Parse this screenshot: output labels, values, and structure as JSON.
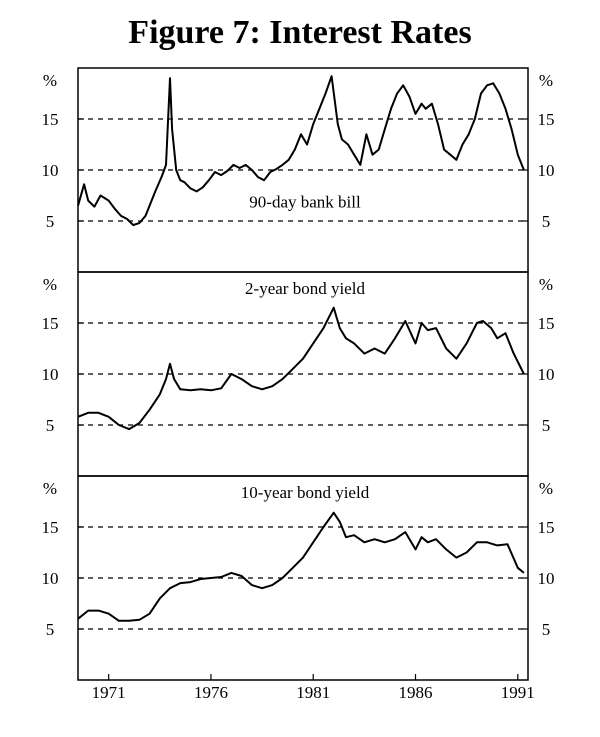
{
  "figure": {
    "title": "Figure 7: Interest Rates"
  },
  "chart_data": {
    "type": "line",
    "title": "Figure 7: Interest Rates",
    "xlabel": "",
    "x_ticks": [
      "1971",
      "1976",
      "1981",
      "1986",
      "1991"
    ],
    "x_tick_values": [
      1971,
      1976,
      1981,
      1986,
      1991
    ],
    "xlim": [
      1969.5,
      1991.5
    ],
    "panels": [
      {
        "label": "90-day bank bill",
        "label_position": "bottom-center",
        "unit_label": "%",
        "ylim": [
          0,
          20
        ],
        "y_ticks": [
          5,
          10,
          15
        ],
        "y_tick_labels": [
          "5",
          "10",
          "15"
        ],
        "grid": "dashed",
        "x": [
          1969.5,
          1969.8,
          1970.0,
          1970.3,
          1970.6,
          1971.0,
          1971.3,
          1971.6,
          1971.9,
          1972.2,
          1972.5,
          1972.8,
          1973.1,
          1973.3,
          1973.6,
          1973.8,
          1974.0,
          1974.1,
          1974.3,
          1974.5,
          1974.7,
          1975.0,
          1975.3,
          1975.6,
          1975.9,
          1976.2,
          1976.5,
          1976.8,
          1977.1,
          1977.4,
          1977.7,
          1978.0,
          1978.3,
          1978.6,
          1978.9,
          1979.2,
          1979.5,
          1979.8,
          1980.1,
          1980.4,
          1980.7,
          1981.0,
          1981.3,
          1981.6,
          1981.9,
          1982.2,
          1982.4,
          1982.7,
          1983.0,
          1983.3,
          1983.6,
          1983.9,
          1984.2,
          1984.5,
          1984.8,
          1985.1,
          1985.4,
          1985.7,
          1986.0,
          1986.3,
          1986.5,
          1986.8,
          1987.1,
          1987.4,
          1987.7,
          1988.0,
          1988.3,
          1988.6,
          1988.9,
          1989.2,
          1989.5,
          1989.8,
          1990.1,
          1990.4,
          1990.7,
          1991.0,
          1991.3
        ],
        "y": [
          6.5,
          8.6,
          7.0,
          6.4,
          7.5,
          7.0,
          6.2,
          5.5,
          5.2,
          4.6,
          4.8,
          5.5,
          7.0,
          8.0,
          9.4,
          10.5,
          19.0,
          14.0,
          10.0,
          9.0,
          8.8,
          8.2,
          7.9,
          8.3,
          9.0,
          9.8,
          9.5,
          9.9,
          10.5,
          10.2,
          10.5,
          10.0,
          9.3,
          9.0,
          9.8,
          10.1,
          10.5,
          11.0,
          12.0,
          13.5,
          12.5,
          14.5,
          16.0,
          17.5,
          19.2,
          14.5,
          13.0,
          12.5,
          11.5,
          10.5,
          13.5,
          11.5,
          12.0,
          14.0,
          16.0,
          17.5,
          18.3,
          17.2,
          15.5,
          16.5,
          16.0,
          16.5,
          14.5,
          12.0,
          11.5,
          11.0,
          12.5,
          13.5,
          15.0,
          17.5,
          18.3,
          18.5,
          17.5,
          16.0,
          14.0,
          11.5,
          10.0
        ]
      },
      {
        "label": "2-year bond yield",
        "label_position": "top-center",
        "unit_label": "%",
        "ylim": [
          0,
          20
        ],
        "y_ticks": [
          5,
          10,
          15
        ],
        "y_tick_labels": [
          "5",
          "10",
          "15"
        ],
        "grid": "dashed",
        "x": [
          1969.5,
          1970.0,
          1970.5,
          1971.0,
          1971.5,
          1972.0,
          1972.5,
          1973.0,
          1973.5,
          1973.8,
          1974.0,
          1974.2,
          1974.5,
          1975.0,
          1975.5,
          1976.0,
          1976.5,
          1977.0,
          1977.5,
          1978.0,
          1978.5,
          1979.0,
          1979.5,
          1980.0,
          1980.5,
          1981.0,
          1981.5,
          1982.0,
          1982.3,
          1982.6,
          1983.0,
          1983.5,
          1984.0,
          1984.5,
          1985.0,
          1985.5,
          1986.0,
          1986.3,
          1986.6,
          1987.0,
          1987.5,
          1988.0,
          1988.5,
          1989.0,
          1989.3,
          1989.7,
          1990.0,
          1990.4,
          1990.8,
          1991.3
        ],
        "y": [
          5.8,
          6.2,
          6.2,
          5.8,
          5.0,
          4.6,
          5.2,
          6.5,
          8.0,
          9.5,
          11.0,
          9.5,
          8.5,
          8.4,
          8.5,
          8.4,
          8.6,
          10.0,
          9.5,
          8.8,
          8.5,
          8.8,
          9.5,
          10.5,
          11.5,
          13.0,
          14.5,
          16.5,
          14.5,
          13.5,
          13.0,
          12.0,
          12.5,
          12.0,
          13.5,
          15.2,
          13.0,
          15.0,
          14.3,
          14.5,
          12.5,
          11.5,
          13.0,
          15.0,
          15.2,
          14.5,
          13.5,
          14.0,
          12.0,
          10.0
        ]
      },
      {
        "label": "10-year bond yield",
        "label_position": "top-center",
        "unit_label": "%",
        "ylim": [
          0,
          20
        ],
        "y_ticks": [
          5,
          10,
          15
        ],
        "y_tick_labels": [
          "5",
          "10",
          "15"
        ],
        "grid": "dashed",
        "x": [
          1969.5,
          1970.0,
          1970.5,
          1971.0,
          1971.5,
          1972.0,
          1972.5,
          1973.0,
          1973.5,
          1974.0,
          1974.5,
          1975.0,
          1975.5,
          1976.0,
          1976.5,
          1977.0,
          1977.5,
          1978.0,
          1978.5,
          1979.0,
          1979.5,
          1980.0,
          1980.5,
          1981.0,
          1981.5,
          1982.0,
          1982.3,
          1982.6,
          1983.0,
          1983.5,
          1984.0,
          1984.5,
          1985.0,
          1985.5,
          1986.0,
          1986.3,
          1986.6,
          1987.0,
          1987.5,
          1988.0,
          1988.5,
          1989.0,
          1989.5,
          1990.0,
          1990.5,
          1991.0,
          1991.3
        ],
        "y": [
          6.0,
          6.8,
          6.8,
          6.5,
          5.8,
          5.8,
          5.9,
          6.5,
          8.0,
          9.0,
          9.5,
          9.6,
          9.9,
          10.0,
          10.1,
          10.5,
          10.2,
          9.3,
          9.0,
          9.3,
          10.0,
          11.0,
          12.0,
          13.5,
          15.0,
          16.4,
          15.5,
          14.0,
          14.2,
          13.5,
          13.8,
          13.5,
          13.8,
          14.5,
          12.8,
          14.0,
          13.5,
          13.8,
          12.8,
          12.0,
          12.5,
          13.5,
          13.5,
          13.2,
          13.3,
          11.0,
          10.5
        ]
      }
    ]
  }
}
